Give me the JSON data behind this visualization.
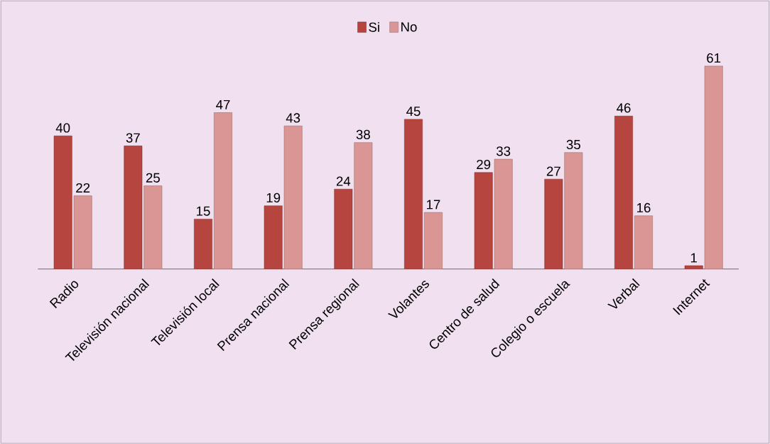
{
  "chart_data": {
    "type": "bar",
    "categories": [
      "Radio",
      "Televisión nacional",
      "Televisión local",
      "Prensa nacional",
      "Prensa regional",
      "Volantes",
      "Centro de salud",
      "Colegio o escuela",
      "Verbal",
      "Internet"
    ],
    "series": [
      {
        "name": "Si",
        "color": "#b5453e",
        "values": [
          40,
          37,
          15,
          19,
          24,
          45,
          29,
          27,
          46,
          1
        ]
      },
      {
        "name": "No",
        "color": "#d99694",
        "values": [
          22,
          25,
          47,
          43,
          38,
          17,
          33,
          35,
          16,
          61
        ]
      }
    ],
    "data_labels": true,
    "legend": "top",
    "tick_labels": "x"
  }
}
